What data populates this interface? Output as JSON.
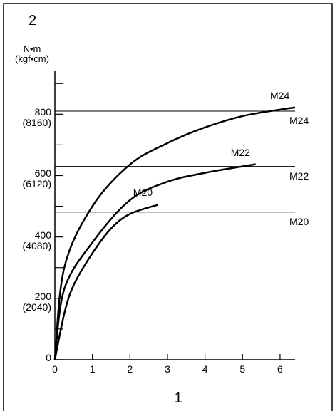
{
  "chart_data": {
    "type": "line",
    "ylabel_number": "2",
    "xlabel_number": "1",
    "yunit": "N•m\n(kgf•cm)",
    "xlim": [
      0,
      6.4
    ],
    "xticks": [
      0,
      1,
      2,
      3,
      4,
      5,
      6
    ],
    "ylim": [
      0,
      940
    ],
    "yticks": [
      {
        "value": 0,
        "label": "0"
      },
      {
        "value": 200,
        "label": "200\n(2040)"
      },
      {
        "value": 400,
        "label": "400\n(4080)"
      },
      {
        "value": 600,
        "label": "600\n(6120)"
      },
      {
        "value": 800,
        "label": "800\n(8160)"
      }
    ],
    "yminor_ticks": [
      100,
      300,
      500,
      700,
      900
    ],
    "series": [
      {
        "name": "M24",
        "color": "#000000",
        "width": 2.5,
        "x": [
          0,
          0.25,
          1,
          2,
          3,
          4,
          5,
          6,
          6.4
        ],
        "values": [
          0,
          300,
          500,
          636,
          706,
          757,
          794,
          815,
          822
        ]
      },
      {
        "name": "M22",
        "color": "#000000",
        "width": 2.5,
        "x": [
          0,
          0.25,
          1,
          2,
          3,
          4,
          5,
          5.35
        ],
        "values": [
          0,
          230,
          382,
          520,
          580,
          609,
          630,
          637
        ]
      },
      {
        "name": "M20",
        "color": "#000000",
        "width": 2.5,
        "x": [
          0,
          0.25,
          0.5,
          1,
          1.5,
          2,
          2.75
        ],
        "values": [
          0,
          150,
          243,
          347,
          428,
          475,
          505
        ]
      },
      {
        "name": "M24",
        "color": "#000000",
        "width": 1,
        "x": [
          0,
          6.4
        ],
        "values": [
          810,
          810
        ]
      },
      {
        "name": "M22",
        "color": "#000000",
        "width": 1,
        "x": [
          0,
          6.4
        ],
        "values": [
          630,
          630
        ]
      },
      {
        "name": "M20",
        "color": "#000000",
        "width": 1,
        "x": [
          0,
          6.4
        ],
        "values": [
          481,
          481
        ]
      }
    ]
  }
}
